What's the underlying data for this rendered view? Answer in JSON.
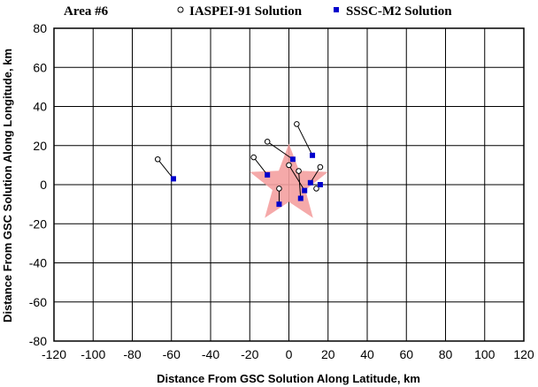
{
  "chart_data": {
    "type": "scatter",
    "title": "Area #6",
    "xlabel": "Distance From GSC Solution Along Latitude, km",
    "ylabel": "Distance From GSC Solution Along Longitude, km",
    "xlim": [
      -120,
      120
    ],
    "ylim": [
      -80,
      80
    ],
    "x_ticks": [
      -120,
      -100,
      -80,
      -60,
      -40,
      -20,
      0,
      20,
      40,
      60,
      80,
      100,
      120
    ],
    "y_ticks": [
      -80,
      -60,
      -40,
      -20,
      0,
      20,
      40,
      60,
      80
    ],
    "grid": true,
    "legend_position": "top",
    "series": [
      {
        "name": "IASPEI-91 Solution",
        "marker": "open-circle",
        "color": "#000000",
        "points": [
          {
            "x": -67,
            "y": 13
          },
          {
            "x": -11,
            "y": 22
          },
          {
            "x": 4,
            "y": 31
          },
          {
            "x": -18,
            "y": 14
          },
          {
            "x": 0,
            "y": 10
          },
          {
            "x": 5,
            "y": 7
          },
          {
            "x": 16,
            "y": 9
          },
          {
            "x": 14,
            "y": -2
          },
          {
            "x": -5,
            "y": -2
          }
        ]
      },
      {
        "name": "SSSC-M2 Solution",
        "marker": "filled-square",
        "color": "#0000cc",
        "points": [
          {
            "x": -59,
            "y": 3
          },
          {
            "x": 2,
            "y": 13
          },
          {
            "x": 12,
            "y": 15
          },
          {
            "x": -11,
            "y": 5
          },
          {
            "x": 8,
            "y": -3
          },
          {
            "x": 6,
            "y": -7
          },
          {
            "x": 11,
            "y": 1
          },
          {
            "x": 16,
            "y": 0
          },
          {
            "x": -5,
            "y": -10
          }
        ]
      }
    ],
    "annotations": [
      {
        "type": "star",
        "center_x": 0,
        "center_y": 0,
        "outer_radius_km": 21,
        "color": "#f4a0a0"
      }
    ]
  }
}
